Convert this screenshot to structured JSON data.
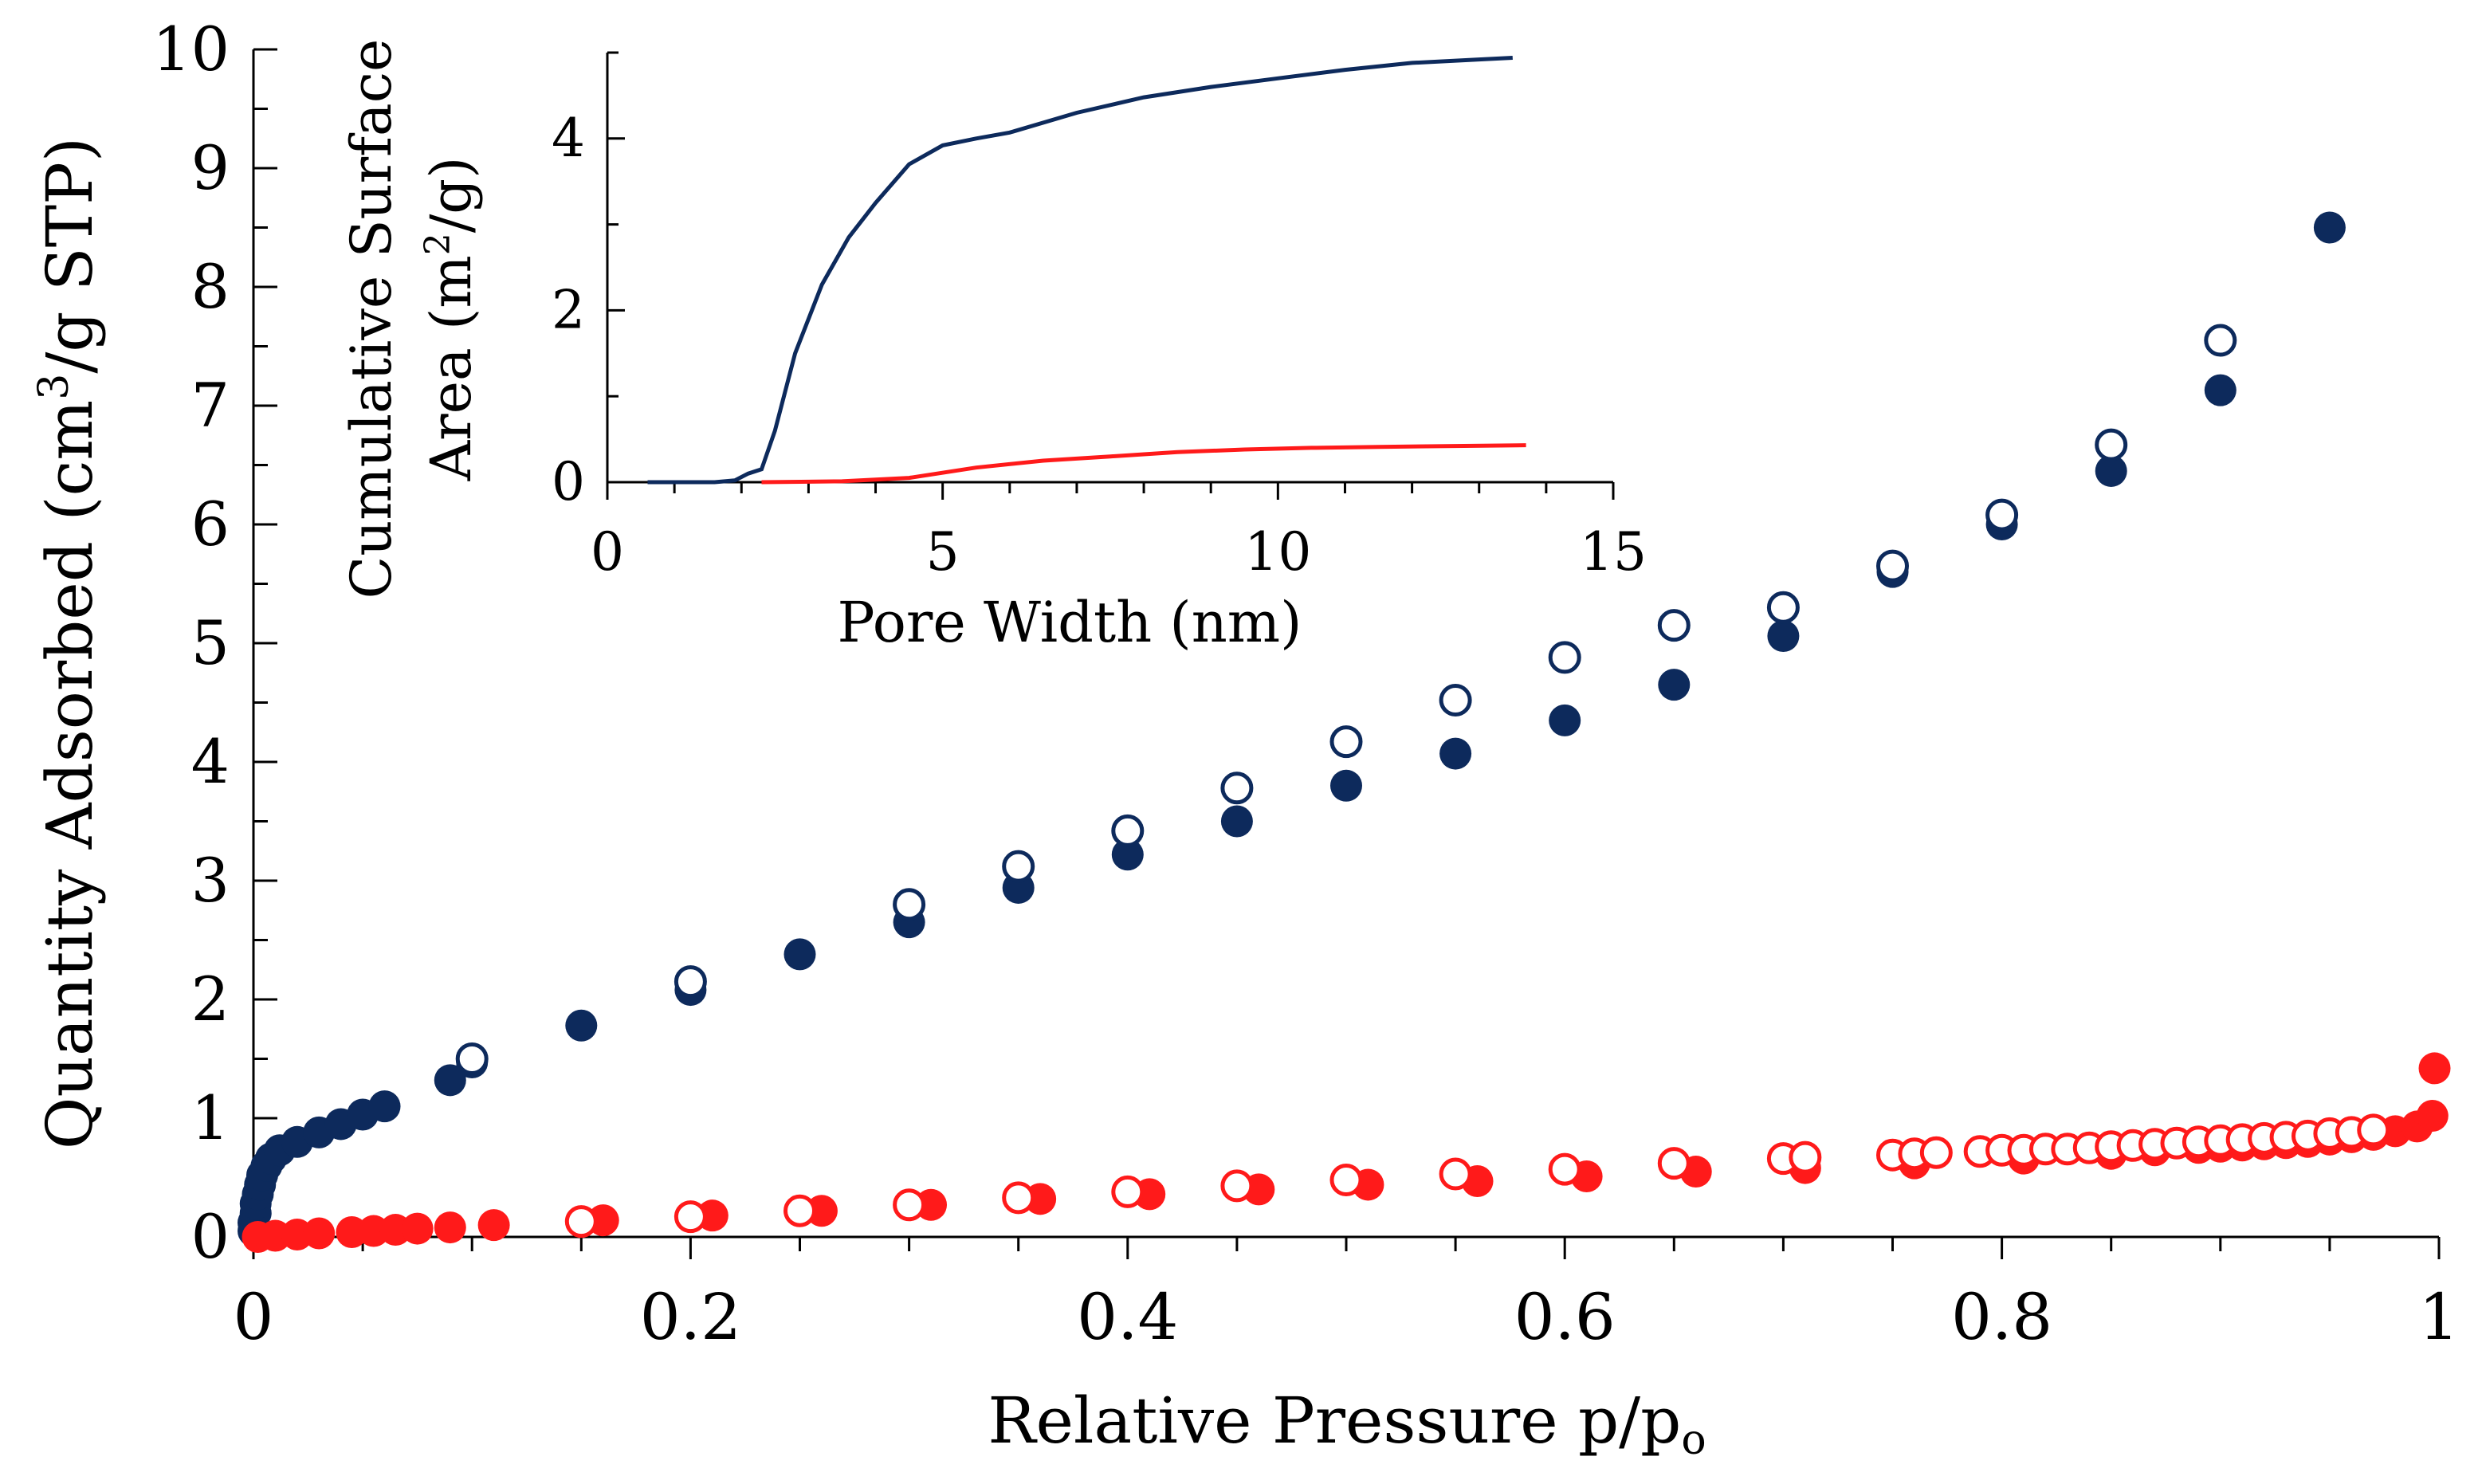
{
  "chart_data": [
    {
      "type": "scatter",
      "title": "",
      "xlabel": "Relative Pressure p/p",
      "xlabel_sub": "o",
      "ylabel_pre": "Quantity Adsorbed (cm",
      "ylabel_sup": "3",
      "ylabel_post": "/g STP)",
      "xlim": [
        0,
        1
      ],
      "ylim": [
        0,
        10
      ],
      "x_ticks": [
        "0",
        "0.2",
        "0.4",
        "0.6",
        "0.8",
        "1"
      ],
      "x_tick_values": [
        0,
        0.2,
        0.4,
        0.6,
        0.8,
        1
      ],
      "y_ticks": [
        "0",
        "1",
        "2",
        "3",
        "4",
        "5",
        "6",
        "7",
        "8",
        "9",
        "10"
      ],
      "y_tick_values": [
        0,
        1,
        2,
        3,
        4,
        5,
        6,
        7,
        8,
        9,
        10
      ],
      "grid": false,
      "series": [
        {
          "color": "#0d2a5c",
          "filled": true,
          "points": [
            [
              0.0,
              0.05
            ],
            [
              0.0,
              0.12
            ],
            [
              0.001,
              0.2
            ],
            [
              0.001,
              0.28
            ],
            [
              0.002,
              0.36
            ],
            [
              0.003,
              0.44
            ],
            [
              0.004,
              0.52
            ],
            [
              0.006,
              0.6
            ],
            [
              0.008,
              0.66
            ],
            [
              0.012,
              0.73
            ],
            [
              0.02,
              0.8
            ],
            [
              0.03,
              0.88
            ],
            [
              0.04,
              0.95
            ],
            [
              0.05,
              1.03
            ],
            [
              0.06,
              1.1
            ],
            [
              0.09,
              1.32
            ],
            [
              0.1,
              1.47
            ],
            [
              0.15,
              1.78
            ],
            [
              0.2,
              2.08
            ],
            [
              0.25,
              2.38
            ],
            [
              0.3,
              2.65
            ],
            [
              0.35,
              2.94
            ],
            [
              0.4,
              3.22
            ],
            [
              0.45,
              3.5
            ],
            [
              0.5,
              3.8
            ],
            [
              0.55,
              4.07
            ],
            [
              0.6,
              4.35
            ],
            [
              0.65,
              4.65
            ],
            [
              0.7,
              5.06
            ],
            [
              0.75,
              5.6
            ],
            [
              0.8,
              6.0
            ],
            [
              0.85,
              6.45
            ],
            [
              0.9,
              7.13
            ],
            [
              0.95,
              8.5
            ]
          ]
        },
        {
          "color": "#0d2a5c",
          "filled": false,
          "points": [
            [
              0.1,
              1.5
            ],
            [
              0.2,
              2.15
            ],
            [
              0.3,
              2.8
            ],
            [
              0.35,
              3.12
            ],
            [
              0.4,
              3.42
            ],
            [
              0.45,
              3.78
            ],
            [
              0.5,
              4.17
            ],
            [
              0.55,
              4.52
            ],
            [
              0.6,
              4.88
            ],
            [
              0.65,
              5.15
            ],
            [
              0.7,
              5.3
            ],
            [
              0.75,
              5.65
            ],
            [
              0.8,
              6.08
            ],
            [
              0.85,
              6.67
            ],
            [
              0.9,
              7.55
            ]
          ]
        },
        {
          "color": "#ff1a1a",
          "filled": true,
          "points": [
            [
              0.002,
              0.0
            ],
            [
              0.01,
              0.01
            ],
            [
              0.02,
              0.02
            ],
            [
              0.03,
              0.03
            ],
            [
              0.045,
              0.04
            ],
            [
              0.055,
              0.05
            ],
            [
              0.065,
              0.06
            ],
            [
              0.075,
              0.07
            ],
            [
              0.09,
              0.08
            ],
            [
              0.11,
              0.1
            ],
            [
              0.16,
              0.14
            ],
            [
              0.21,
              0.18
            ],
            [
              0.26,
              0.22
            ],
            [
              0.31,
              0.27
            ],
            [
              0.36,
              0.32
            ],
            [
              0.41,
              0.36
            ],
            [
              0.46,
              0.4
            ],
            [
              0.51,
              0.44
            ],
            [
              0.56,
              0.47
            ],
            [
              0.61,
              0.51
            ],
            [
              0.66,
              0.55
            ],
            [
              0.71,
              0.58
            ],
            [
              0.76,
              0.62
            ],
            [
              0.81,
              0.66
            ],
            [
              0.85,
              0.7
            ],
            [
              0.87,
              0.73
            ],
            [
              0.89,
              0.75
            ],
            [
              0.9,
              0.76
            ],
            [
              0.91,
              0.77
            ],
            [
              0.92,
              0.78
            ],
            [
              0.93,
              0.79
            ],
            [
              0.94,
              0.8
            ],
            [
              0.95,
              0.82
            ],
            [
              0.96,
              0.84
            ],
            [
              0.97,
              0.86
            ],
            [
              0.98,
              0.89
            ],
            [
              0.99,
              0.93
            ],
            [
              0.997,
              1.02
            ],
            [
              0.998,
              1.42
            ]
          ]
        },
        {
          "color": "#ff1a1a",
          "filled": false,
          "points": [
            [
              0.15,
              0.13
            ],
            [
              0.2,
              0.17
            ],
            [
              0.25,
              0.22
            ],
            [
              0.3,
              0.27
            ],
            [
              0.35,
              0.33
            ],
            [
              0.4,
              0.38
            ],
            [
              0.45,
              0.43
            ],
            [
              0.5,
              0.48
            ],
            [
              0.55,
              0.53
            ],
            [
              0.6,
              0.57
            ],
            [
              0.65,
              0.62
            ],
            [
              0.7,
              0.66
            ],
            [
              0.71,
              0.67
            ],
            [
              0.75,
              0.69
            ],
            [
              0.76,
              0.7
            ],
            [
              0.77,
              0.71
            ],
            [
              0.79,
              0.72
            ],
            [
              0.8,
              0.73
            ],
            [
              0.81,
              0.73
            ],
            [
              0.82,
              0.74
            ],
            [
              0.83,
              0.74
            ],
            [
              0.84,
              0.75
            ],
            [
              0.85,
              0.76
            ],
            [
              0.86,
              0.77
            ],
            [
              0.87,
              0.78
            ],
            [
              0.88,
              0.79
            ],
            [
              0.89,
              0.8
            ],
            [
              0.9,
              0.81
            ],
            [
              0.91,
              0.82
            ],
            [
              0.92,
              0.83
            ],
            [
              0.93,
              0.84
            ],
            [
              0.94,
              0.85
            ],
            [
              0.95,
              0.87
            ],
            [
              0.96,
              0.88
            ],
            [
              0.97,
              0.9
            ]
          ]
        }
      ]
    },
    {
      "type": "line",
      "title": "",
      "xlabel": "Pore Width (nm)",
      "ylabel_line1": "Cumulative Surface",
      "ylabel_line2_pre": "Area (m",
      "ylabel_line2_sup": "2",
      "ylabel_line2_post": "/g)",
      "xlim": [
        0,
        15
      ],
      "ylim": [
        0,
        5
      ],
      "x_ticks": [
        "0",
        "5",
        "10",
        "15"
      ],
      "x_tick_values": [
        0,
        5,
        10,
        15
      ],
      "y_ticks": [
        "0",
        "2",
        "4"
      ],
      "y_tick_values": [
        0,
        2,
        4
      ],
      "grid": false,
      "series": [
        {
          "color": "#0d2a5c",
          "points": [
            [
              0.6,
              0.0
            ],
            [
              1.6,
              0.0
            ],
            [
              1.9,
              0.02
            ],
            [
              2.1,
              0.1
            ],
            [
              2.3,
              0.15
            ],
            [
              2.5,
              0.6
            ],
            [
              2.8,
              1.5
            ],
            [
              3.2,
              2.3
            ],
            [
              3.6,
              2.85
            ],
            [
              4.0,
              3.25
            ],
            [
              4.5,
              3.7
            ],
            [
              5.0,
              3.92
            ],
            [
              5.5,
              4.0
            ],
            [
              6.0,
              4.07
            ],
            [
              7.0,
              4.3
            ],
            [
              8.0,
              4.48
            ],
            [
              9.0,
              4.6
            ],
            [
              10.0,
              4.7
            ],
            [
              11.0,
              4.8
            ],
            [
              12.0,
              4.88
            ],
            [
              13.0,
              4.92
            ],
            [
              13.5,
              4.94
            ]
          ]
        },
        {
          "color": "#ff1a1a",
          "points": [
            [
              2.3,
              0.0
            ],
            [
              3.5,
              0.01
            ],
            [
              4.5,
              0.05
            ],
            [
              5.5,
              0.17
            ],
            [
              6.5,
              0.25
            ],
            [
              7.5,
              0.3
            ],
            [
              8.5,
              0.35
            ],
            [
              9.5,
              0.38
            ],
            [
              10.5,
              0.4
            ],
            [
              11.5,
              0.41
            ],
            [
              12.5,
              0.42
            ],
            [
              13.7,
              0.43
            ]
          ]
        }
      ]
    }
  ]
}
